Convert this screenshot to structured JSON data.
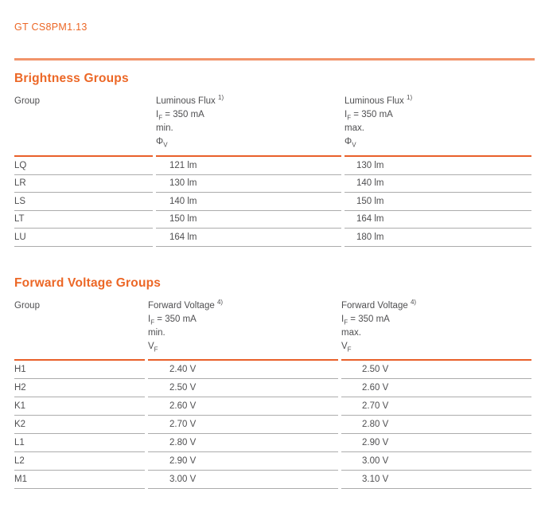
{
  "colors": {
    "accent": "#EC6726",
    "rule": "#F1946B",
    "header_border": "#E9602A",
    "row_border": "#ACACAC",
    "text": "#4F4F51"
  },
  "header": {
    "product_code": "GT CS8PM1.13"
  },
  "sections": [
    {
      "title": "Brightness Groups",
      "group_header": "Group",
      "columns": [
        {
          "quantity": "Luminous Flux",
          "footnote": "1)",
          "cond_symbol": "I",
          "cond_sub": "F",
          "cond_value": "= 350 mA",
          "bound": "min.",
          "symbol": "Φ",
          "symbol_sub": "V"
        },
        {
          "quantity": "Luminous Flux",
          "footnote": "1)",
          "cond_symbol": "I",
          "cond_sub": "F",
          "cond_value": "= 350 mA",
          "bound": "max.",
          "symbol": "Φ",
          "symbol_sub": "V"
        }
      ],
      "rows": [
        {
          "group": "LQ",
          "min": "121 lm",
          "max": "130 lm"
        },
        {
          "group": "LR",
          "min": "130 lm",
          "max": "140 lm"
        },
        {
          "group": "LS",
          "min": "140 lm",
          "max": "150 lm"
        },
        {
          "group": "LT",
          "min": "150 lm",
          "max": "164 lm"
        },
        {
          "group": "LU",
          "min": "164 lm",
          "max": "180 lm"
        }
      ]
    },
    {
      "title": "Forward Voltage Groups",
      "group_header": "Group",
      "columns": [
        {
          "quantity": "Forward Voltage",
          "footnote": "4)",
          "cond_symbol": "I",
          "cond_sub": "F",
          "cond_value": "= 350 mA",
          "bound": "min.",
          "symbol": "V",
          "symbol_sub": "F"
        },
        {
          "quantity": "Forward Voltage",
          "footnote": "4)",
          "cond_symbol": "I",
          "cond_sub": "F",
          "cond_value": "= 350 mA",
          "bound": "max.",
          "symbol": "V",
          "symbol_sub": "F"
        }
      ],
      "rows": [
        {
          "group": "H1",
          "min": "2.40 V",
          "max": "2.50 V"
        },
        {
          "group": "H2",
          "min": "2.50 V",
          "max": "2.60 V"
        },
        {
          "group": "K1",
          "min": "2.60 V",
          "max": "2.70 V"
        },
        {
          "group": "K2",
          "min": "2.70 V",
          "max": "2.80 V"
        },
        {
          "group": "L1",
          "min": "2.80 V",
          "max": "2.90 V"
        },
        {
          "group": "L2",
          "min": "2.90 V",
          "max": "3.00 V"
        },
        {
          "group": "M1",
          "min": "3.00 V",
          "max": "3.10 V"
        }
      ]
    }
  ]
}
